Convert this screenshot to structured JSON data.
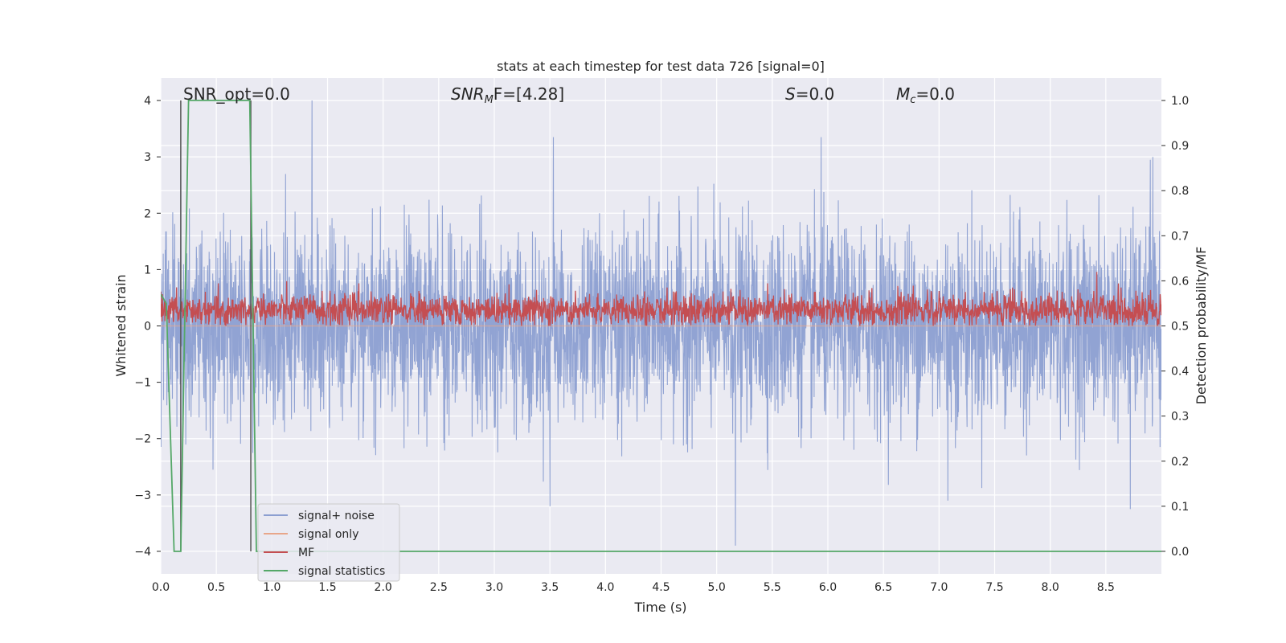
{
  "chart_data": {
    "type": "line",
    "title": "stats at each timestep for test data 726 [signal=0]",
    "xlabel": "Time (s)",
    "ylabel": "Whitened strain",
    "ylabel_right": "Detection probability/MF",
    "xlim": [
      0.0,
      9.0
    ],
    "ylim": [
      -4.4,
      4.4
    ],
    "ylim_right": [
      -0.05,
      1.05
    ],
    "xticks": [
      "0.0",
      "0.5",
      "1.0",
      "1.5",
      "2.0",
      "2.5",
      "3.0",
      "3.5",
      "4.0",
      "4.5",
      "5.0",
      "5.5",
      "6.0",
      "6.5",
      "7.0",
      "7.5",
      "8.0",
      "8.5"
    ],
    "yticks": [
      "−4",
      "−3",
      "−2",
      "−1",
      "0",
      "1",
      "2",
      "3",
      "4"
    ],
    "yticks_right": [
      "0.0",
      "0.1",
      "0.2",
      "0.3",
      "0.4",
      "0.5",
      "0.6",
      "0.7",
      "0.8",
      "0.9",
      "1.0"
    ],
    "grid": true,
    "legend_position": "lower-left",
    "annotations": {
      "snr_opt": "SNR_opt=0.0",
      "snr_mf_prefix": "SNR",
      "snr_mf_sub": "M",
      "snr_mf_suffix": "F=[4.28]",
      "s_label": "S",
      "s_value": "=0.0",
      "mc_label": "M",
      "mc_sub": "c",
      "mc_value": "=0.0"
    },
    "vlines_x": [
      0.18,
      0.81
    ],
    "series": [
      {
        "name": "signal+ noise",
        "color": "#8c9fd1",
        "axis": "left",
        "description_range": [
          -4.0,
          4.0
        ],
        "typical_abs": 1.0,
        "peaks": [
          [
            0.18,
            3.1
          ],
          [
            1.36,
            4.0
          ],
          [
            3.53,
            3.35
          ],
          [
            5.17,
            -3.9
          ],
          [
            5.94,
            3.35
          ],
          [
            3.5,
            -3.2
          ],
          [
            7.08,
            -3.1
          ],
          [
            8.72,
            -3.25
          ],
          [
            8.9,
            2.95
          ]
        ]
      },
      {
        "name": "signal only",
        "color": "#e8a68a",
        "axis": "left",
        "values_constant": 0.0
      },
      {
        "name": "MF",
        "color": "#c44e52",
        "axis": "right",
        "typical_range": [
          0.5,
          0.58
        ],
        "peak": [
          8.42,
          0.62
        ]
      },
      {
        "name": "signal statistics",
        "color": "#55a868",
        "axis": "right",
        "x": [
          0.0,
          0.05,
          0.12,
          0.18,
          0.25,
          0.8,
          0.86,
          9.0
        ],
        "y": [
          0.57,
          0.55,
          0.0,
          0.0,
          1.0,
          1.0,
          0.0,
          0.0
        ]
      }
    ]
  }
}
